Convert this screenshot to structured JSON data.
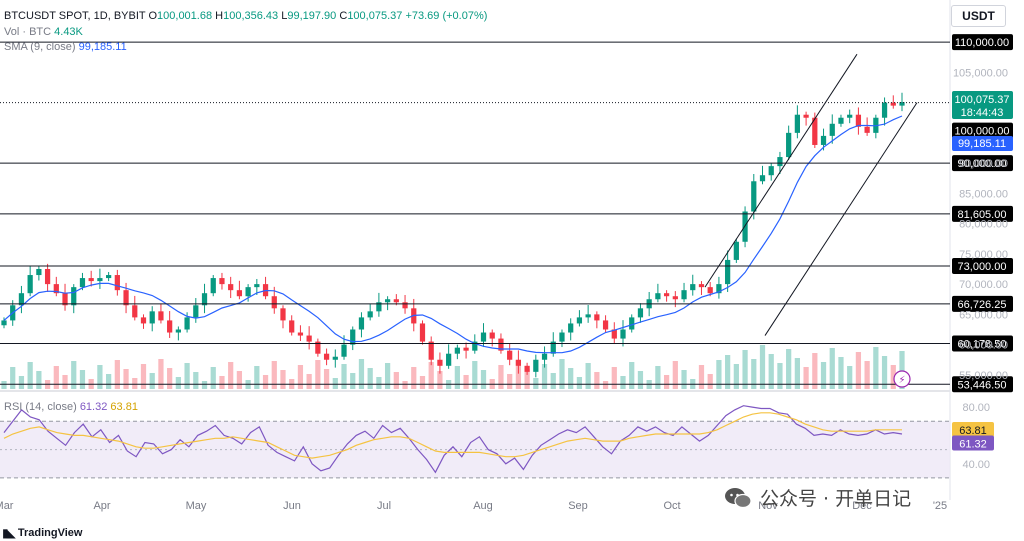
{
  "header": {
    "symbol": "BTCUSDT SPOT, 1D, BYBIT",
    "o_label": "O",
    "o_value": "100,001.68",
    "h_label": "H",
    "h_value": "100,356.43",
    "l_label": "L",
    "l_value": "99,197.90",
    "c_label": "C",
    "c_value": "100,075.37",
    "change": "+73.69 (+0.07%)",
    "vol_label": "Vol · BTC",
    "vol_value": "4.43K",
    "sma_label": "SMA (9, close)",
    "sma_value": "99,185.11"
  },
  "currency_button": "USDT",
  "watermark": {
    "text": "公众号 · 开单日记",
    "logo": "TradingView"
  },
  "colors": {
    "up": "#089981",
    "down": "#f23645",
    "sma": "#2962ff",
    "rsi": "#7e57c2",
    "rsi_ma": "#f5c342",
    "rsi_band": "#ede7f6"
  },
  "chart_data": [
    {
      "type": "candlestick",
      "symbol": "BTCUSDT",
      "x_ticks": [
        "Mar",
        "Apr",
        "May",
        "Jun",
        "Jul",
        "Aug",
        "Sep",
        "Oct",
        "Nov",
        "Dec",
        "'25"
      ],
      "y_ticks": [
        55000,
        60000,
        65000,
        70000,
        75000,
        80000,
        85000,
        90000,
        95000,
        100000,
        105000
      ],
      "y_tick_labels": [
        "55,000.00",
        "60,000.00",
        "65,000.00",
        "70,000.00",
        "75,000.00",
        "80,000.00",
        "85,000.00",
        "90,000.00",
        "95,000.00",
        "100,000.00",
        "105,000.00"
      ],
      "ylim": [
        52500,
        112000
      ],
      "horizontal_levels": [
        110000,
        90000,
        81605,
        73000,
        66726.25,
        60178.5,
        53446.5
      ],
      "horizontal_level_labels": [
        "110,000.00",
        "90,000.00",
        "81,605.00",
        "73,000.00",
        "66,726.25",
        "60,178.50",
        "53,446.50"
      ],
      "round_level": 100000,
      "round_level_label": "100,000.00",
      "last_price": 100075.37,
      "last_price_label": "100,075.37",
      "countdown": "18:44:43",
      "sma_last_label": "99,185.11",
      "channel_note": "rising parallel channel",
      "close_series_approx": [
        64000,
        66500,
        68500,
        71500,
        72500,
        70000,
        68500,
        66500,
        69500,
        71000,
        70500,
        71000,
        71500,
        69000,
        66500,
        64500,
        63500,
        65500,
        64000,
        62000,
        62500,
        64500,
        66500,
        68500,
        71000,
        70000,
        69000,
        68000,
        69500,
        70000,
        68000,
        66000,
        64000,
        62000,
        61500,
        60500,
        58500,
        57500,
        58000,
        60000,
        62500,
        64500,
        65500,
        67000,
        67500,
        67000,
        66000,
        63500,
        60500,
        57500,
        56500,
        58500,
        59500,
        59000,
        60500,
        62000,
        61000,
        59000,
        57500,
        56500,
        55500,
        57500,
        58500,
        60500,
        62000,
        63500,
        64500,
        65000,
        64000,
        62500,
        61000,
        62500,
        64500,
        66000,
        67500,
        68500,
        68000,
        67500,
        69000,
        70000,
        69500,
        68500,
        70000,
        74000,
        77000,
        82000,
        87000,
        88000,
        89500,
        91000,
        95000,
        98000,
        97500,
        93000,
        94500,
        96500,
        97500,
        98000,
        96000,
        95000,
        97500,
        100000,
        99500,
        100075
      ]
    },
    {
      "type": "bar",
      "name": "Vol · BTC",
      "last_value_label": "4.43K"
    },
    {
      "type": "line",
      "name": "RSI (14, close)",
      "values_label": [
        "61.32",
        "63.81"
      ],
      "y_ticks": [
        40,
        60,
        80
      ],
      "y_tick_labels": [
        "40.00",
        "60.00",
        "80.00"
      ],
      "ylim": [
        25,
        85
      ],
      "band": [
        30,
        70
      ],
      "last_rsi": 61.32,
      "last_rsi_label": "61.32",
      "last_rsi_ma": 63.81,
      "last_rsi_ma_label": "63.81",
      "rsi_series_approx": [
        62,
        70,
        78,
        73,
        71,
        63,
        58,
        53,
        62,
        68,
        59,
        64,
        55,
        60,
        49,
        45,
        55,
        54,
        47,
        50,
        57,
        52,
        60,
        63,
        67,
        60,
        58,
        54,
        62,
        66,
        53,
        48,
        45,
        42,
        52,
        40,
        35,
        37,
        46,
        54,
        60,
        63,
        58,
        67,
        62,
        65,
        58,
        50,
        43,
        34,
        46,
        52,
        45,
        55,
        59,
        50,
        47,
        40,
        44,
        36,
        46,
        53,
        57,
        61,
        64,
        62,
        66,
        59,
        52,
        47,
        56,
        60,
        66,
        63,
        66,
        62,
        60,
        66,
        61,
        56,
        60,
        67,
        74,
        78,
        81,
        80,
        79,
        79,
        76,
        75,
        68,
        65,
        60,
        61,
        60,
        64,
        61,
        60,
        61,
        64,
        61,
        62,
        61
      ],
      "rsi_ma_series_approx": [
        58,
        61,
        63,
        65,
        66,
        64,
        62,
        61,
        60,
        60,
        59,
        58,
        57,
        56,
        54,
        52,
        51,
        51,
        52,
        53,
        54,
        55,
        56,
        57,
        58,
        58,
        59,
        58,
        57,
        56,
        55,
        52,
        49,
        46,
        45,
        44,
        45,
        46,
        48,
        50,
        53,
        55,
        57,
        58,
        59,
        59,
        58,
        55,
        52,
        49,
        48,
        48,
        48,
        48,
        48,
        47,
        46,
        45,
        45,
        46,
        48,
        50,
        52,
        54,
        56,
        57,
        58,
        57,
        56,
        56,
        56,
        58,
        59,
        60,
        61,
        61,
        61,
        61,
        61,
        61,
        62,
        64,
        67,
        70,
        73,
        75,
        76,
        76,
        75,
        73,
        71,
        68,
        66,
        64,
        63,
        63,
        63,
        63,
        63,
        64,
        64,
        64,
        64
      ]
    }
  ]
}
